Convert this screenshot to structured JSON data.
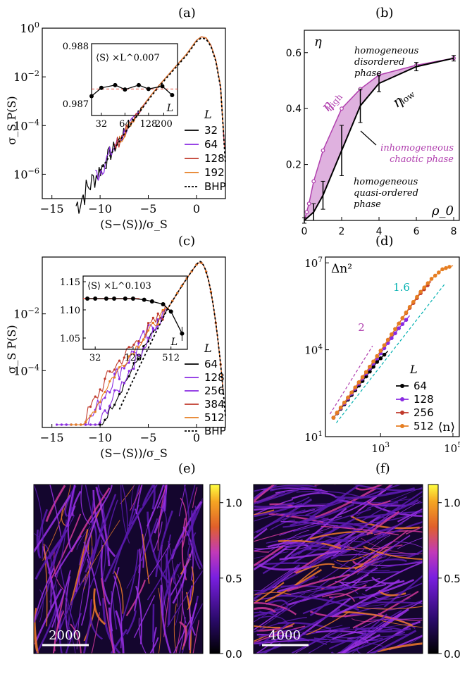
{
  "panel_labels": [
    "(a)",
    "(b)",
    "(c)",
    "(d)",
    "(e)",
    "(f)"
  ],
  "chart_data": [
    {
      "panel": "(a)",
      "type": "line",
      "xlabel": "(S−⟨S⟩)/σ_S",
      "ylabel": "σ_S P(S)",
      "xlim": [
        -16,
        3
      ],
      "ylim_log10": [
        -7,
        0
      ],
      "x_ticks": [
        -15,
        -10,
        -5,
        0
      ],
      "y_tick_labels": [
        "10^0",
        "10^-2",
        "10^-4",
        "10^-6"
      ],
      "legend_title": "L",
      "legend": [
        "32",
        "64",
        "128",
        "192",
        "BHP"
      ],
      "colors": [
        "#000000",
        "#8a2be2",
        "#c0392b",
        "#e67e22",
        "#000000"
      ],
      "bhp_start": -10,
      "collapse_x": [
        -10,
        -9,
        -8,
        -7,
        -6,
        -5,
        -4,
        -3,
        -2,
        -1,
        0,
        0.5,
        1,
        1.5,
        2,
        2.5,
        3
      ],
      "collapse_log10_y": [
        -5.8,
        -5.2,
        -4.6,
        -4.0,
        -3.45,
        -2.9,
        -2.4,
        -1.95,
        -1.5,
        -1.05,
        -0.5,
        -0.35,
        -0.4,
        -0.7,
        -1.3,
        -2.4,
        -5.5
      ],
      "inset": {
        "ylabel": "⟨S⟩ ×L^0.007",
        "xlabel": "L",
        "x_ticks": [
          "32",
          "64",
          "128",
          "200"
        ],
        "y_ticks": [
          "0.988",
          "0.987"
        ],
        "x": [
          24,
          32,
          48,
          64,
          96,
          128,
          192,
          256
        ],
        "y": [
          0.9872,
          0.98735,
          0.9874,
          0.98732,
          0.9874,
          0.98733,
          0.98738,
          0.98722
        ]
      }
    },
    {
      "panel": "(b)",
      "type": "line",
      "xlabel": "ρ_0",
      "ylabel": "η",
      "xlim": [
        0,
        8.3
      ],
      "ylim": [
        0,
        0.68
      ],
      "x_ticks": [
        0,
        2,
        4,
        6,
        8
      ],
      "y_ticks": [
        0.2,
        0.4,
        0.6
      ],
      "series": [
        {
          "name": "η_high",
          "x": [
            0.125,
            0.25,
            0.5,
            1,
            2,
            3,
            4,
            6,
            8
          ],
          "y": [
            0.03,
            0.06,
            0.14,
            0.25,
            0.4,
            0.47,
            0.52,
            0.555,
            0.58
          ]
        },
        {
          "name": "η_low",
          "x": [
            0,
            0.5,
            1,
            2,
            3,
            4,
            6,
            8
          ],
          "y": [
            0,
            0.03,
            0.09,
            0.25,
            0.41,
            0.49,
            0.55,
            0.58
          ]
        }
      ],
      "annotations": [
        "homogeneous disordered phase",
        "inhomogeneous chaotic phase",
        "homogeneous quasi-ordered phase"
      ]
    },
    {
      "panel": "(c)",
      "type": "line",
      "xlabel": "(S−⟨S⟩)/σ_S",
      "ylabel": "σ_S P(S)",
      "xlim": [
        -16,
        3
      ],
      "ylim_log10": [
        -6,
        0
      ],
      "x_ticks": [
        -15,
        -10,
        -5,
        0
      ],
      "y_tick_labels": [
        "10^-2",
        "10^-4"
      ],
      "legend_title": "L",
      "legend": [
        "64",
        "128",
        "256",
        "384",
        "512",
        "BHP"
      ],
      "colors": [
        "#000000",
        "#8a2be2",
        "#8a2be2",
        "#c0392b",
        "#e67e22",
        "#000000"
      ],
      "inset": {
        "ylabel": "⟨S⟩ ×L^0.103",
        "xlabel": "L",
        "x_ticks": [
          "32",
          "128",
          "512"
        ],
        "y_ticks": [
          "1.15",
          "1.10",
          "1.05"
        ],
        "x": [
          24,
          32,
          48,
          64,
          96,
          128,
          192,
          256,
          384,
          512,
          768
        ],
        "y": [
          1.12,
          1.12,
          1.12,
          1.12,
          1.12,
          1.12,
          1.118,
          1.115,
          1.11,
          1.097,
          1.058
        ]
      }
    },
    {
      "panel": "(d)",
      "type": "line",
      "xlabel": "⟨n⟩",
      "ylabel": "Δn²",
      "x_scale": "log",
      "y_scale": "log",
      "x_tick_labels": [
        "10^3",
        "10^5"
      ],
      "y_tick_labels": [
        "10^1",
        "10^4",
        "10^7"
      ],
      "legend_title": "L",
      "series": [
        {
          "name": "64",
          "color": "#000000",
          "x": [
            50,
            100,
            200,
            400,
            800,
            1600
          ],
          "y": [
            45,
            130,
            400,
            1200,
            3800,
            9000
          ]
        },
        {
          "name": "128",
          "color": "#8a2be2",
          "x": [
            50,
            100,
            200,
            400,
            800,
            1600,
            3200,
            6400
          ],
          "y": [
            45,
            140,
            450,
            1500,
            5000,
            17000,
            55000,
            150000
          ]
        },
        {
          "name": "256",
          "color": "#c0392b",
          "x": [
            50,
            100,
            200,
            400,
            800,
            1600,
            3200,
            6400,
            12800,
            25000
          ],
          "y": [
            45,
            150,
            500,
            1700,
            6000,
            22000,
            80000,
            280000,
            900000,
            2300000
          ]
        },
        {
          "name": "512",
          "color": "#e67e22",
          "x": [
            50,
            100,
            200,
            400,
            800,
            1600,
            3200,
            6400,
            12800,
            25600,
            51200,
            100000
          ],
          "y": [
            45,
            150,
            500,
            1700,
            6000,
            22000,
            80000,
            300000,
            1000000,
            2800000,
            6000000,
            8000000
          ]
        }
      ],
      "guide_labels": [
        "2",
        "1.6"
      ]
    },
    {
      "panel": "(e)",
      "type": "heatmap",
      "colorbar_ticks": [
        "1.0",
        "0.5",
        "0.0"
      ],
      "scalebar": "2000"
    },
    {
      "panel": "(f)",
      "type": "heatmap",
      "colorbar_ticks": [
        "1.0",
        "0.5",
        "0.0"
      ],
      "scalebar": "4000"
    }
  ]
}
